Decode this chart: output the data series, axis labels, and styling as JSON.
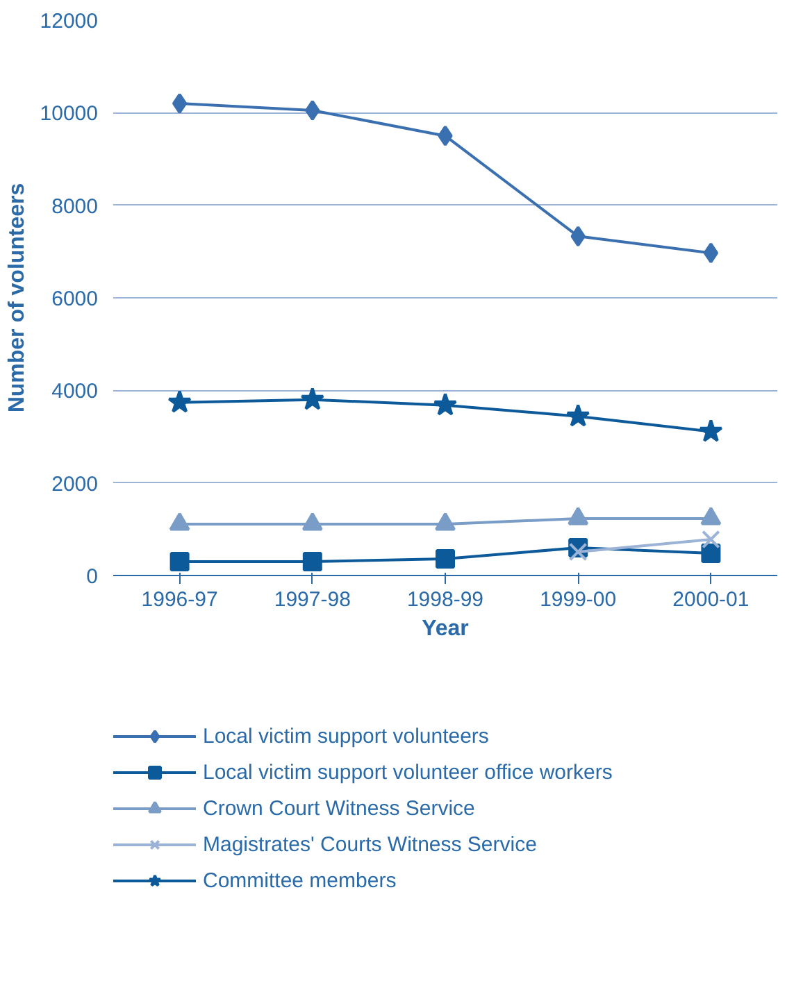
{
  "chart_data": {
    "type": "line",
    "xlabel": "Year",
    "ylabel": "Number of volunteers",
    "categories": [
      "1996-97",
      "1997-98",
      "1998-99",
      "1999-00",
      "2000-01"
    ],
    "ylim": [
      0,
      12000
    ],
    "yticks": [
      0,
      2000,
      4000,
      6000,
      8000,
      10000,
      12000
    ],
    "grid": "y",
    "legend": "bottom",
    "series": [
      {
        "name": "Local victim support volunteers",
        "color": "#3a6fb0",
        "marker": "diamond",
        "values": [
          10200,
          10050,
          9500,
          7330,
          6970
        ]
      },
      {
        "name": "Local victim support volunteer office workers",
        "color": "#0d5a9a",
        "marker": "square",
        "values": [
          300,
          300,
          360,
          600,
          480
        ]
      },
      {
        "name": "Crown Court Witness Service",
        "color": "#7a9dc8",
        "marker": "triangle",
        "values": [
          1110,
          1110,
          1110,
          1230,
          1230
        ]
      },
      {
        "name": "Magistrates' Courts Witness Service",
        "color": "#9bb3d6",
        "marker": "cross",
        "values": [
          null,
          null,
          null,
          510,
          780
        ]
      },
      {
        "name": "Committee members",
        "color": "#0d5a9a",
        "marker": "star",
        "values": [
          3740,
          3800,
          3680,
          3440,
          3110
        ]
      }
    ]
  }
}
